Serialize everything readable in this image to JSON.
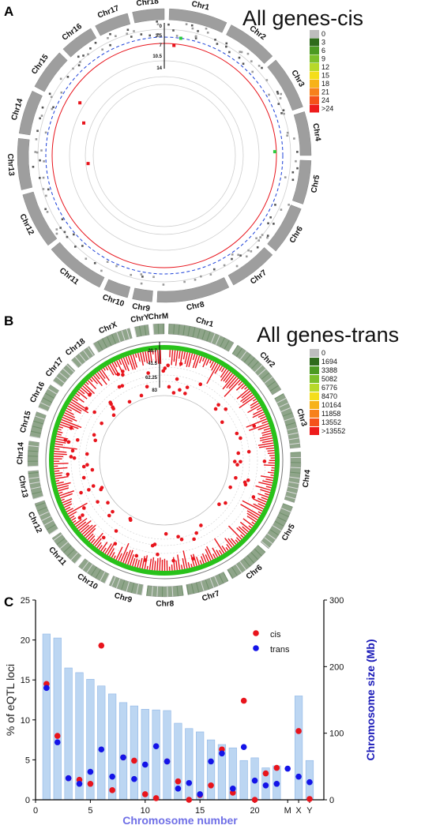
{
  "panel_a": {
    "letter": "A",
    "title": "All genes-cis",
    "chromosomes": [
      "Chr1",
      "Chr2",
      "Chr3",
      "Chr4",
      "Chr5",
      "Chr6",
      "Chr7",
      "Chr8",
      "Chr9",
      "Chr10",
      "Chr11",
      "Chr12",
      "Chr13",
      "Chr14",
      "Chr15",
      "Chr16",
      "Chr17",
      "Chr18"
    ],
    "radial_ticks": [
      "0",
      "3.5",
      "7",
      "10.5",
      "14"
    ],
    "legend": {
      "labels": [
        "0",
        "3",
        "6",
        "9",
        "12",
        "15",
        "18",
        "21",
        "24",
        ">24"
      ],
      "colors": [
        "#bdbdbd",
        "#2f6b1c",
        "#4c9a22",
        "#7cbf2a",
        "#b7d92a",
        "#f4de1b",
        "#f7b21a",
        "#f7811b",
        "#f5521a",
        "#ee1c1c"
      ]
    }
  },
  "panel_b": {
    "letter": "B",
    "title": "All genes-trans",
    "chromosomes": [
      "Chr1",
      "Chr2",
      "Chr3",
      "Chr4",
      "Chr5",
      "Chr6",
      "Chr7",
      "Chr8",
      "Chr9",
      "Chr10",
      "Chr11",
      "Chr12",
      "Chr13",
      "Chr14",
      "Chr15",
      "Chr16",
      "Chr17",
      "Chr18",
      "ChrX",
      "ChrY",
      "ChrM"
    ],
    "radial_ticks": [
      "20.7",
      "41.5",
      "62.25",
      "83"
    ],
    "legend": {
      "labels": [
        "0",
        "1694",
        "3388",
        "5082",
        "6776",
        "8470",
        "10164",
        "11858",
        "13552",
        ">13552"
      ],
      "colors": [
        "#bdbdbd",
        "#2f6b1c",
        "#4c9a22",
        "#7cbf2a",
        "#b7d92a",
        "#f4de1b",
        "#f7b21a",
        "#f7811b",
        "#f5521a",
        "#ee1c1c"
      ]
    }
  },
  "panel_c": {
    "letter": "C"
  },
  "chart_data": {
    "type": "bar",
    "xlabel": "Chromosome number",
    "ylabel": "% of eQTL loci",
    "y2label": "Chromosome size (Mb)",
    "x_ticks": [
      "0",
      "5",
      "10",
      "15",
      "20",
      "M",
      "X",
      "Y"
    ],
    "ylim": [
      0,
      25
    ],
    "y_ticks": [
      0,
      5,
      10,
      15,
      20,
      25
    ],
    "y2lim": [
      0,
      300
    ],
    "y2_ticks": [
      0,
      100,
      200,
      300
    ],
    "categories": [
      "1",
      "2",
      "3",
      "4",
      "5",
      "6",
      "7",
      "8",
      "9",
      "10",
      "11",
      "12",
      "13",
      "14",
      "15",
      "16",
      "17",
      "18",
      "19",
      "20",
      "21",
      "22",
      "M",
      "X",
      "Y"
    ],
    "x_positions": [
      1,
      2,
      3,
      4,
      5,
      6,
      7,
      8,
      9,
      10,
      11,
      12,
      13,
      14,
      15,
      16,
      17,
      18,
      19,
      20,
      21,
      22,
      23,
      24,
      25
    ],
    "chromosome_size_mb": [
      249,
      243,
      198,
      191,
      181,
      171,
      159,
      146,
      141,
      136,
      135,
      134,
      115,
      107,
      102,
      90,
      83,
      78,
      59,
      63,
      48,
      51,
      0,
      156,
      59
    ],
    "series": [
      {
        "name": "cis",
        "color": "#e8141c",
        "values": [
          14.5,
          8.0,
          2.7,
          2.5,
          2.0,
          19.3,
          1.2,
          5.3,
          4.9,
          0.7,
          0.2,
          4.8,
          2.3,
          0.0,
          0.6,
          1.8,
          6.3,
          0.9,
          12.4,
          0.0,
          3.3,
          4.0,
          null,
          8.6,
          0.1
        ]
      },
      {
        "name": "trans",
        "color": "#1414e8",
        "values": [
          14.0,
          7.2,
          2.7,
          2.0,
          3.5,
          6.3,
          2.9,
          5.3,
          2.6,
          4.4,
          6.7,
          4.8,
          1.4,
          2.1,
          0.7,
          4.8,
          5.8,
          1.4,
          6.6,
          2.4,
          1.8,
          2.0,
          3.9,
          2.9,
          2.2
        ]
      }
    ],
    "legend_position": "top-right",
    "grid": false
  }
}
